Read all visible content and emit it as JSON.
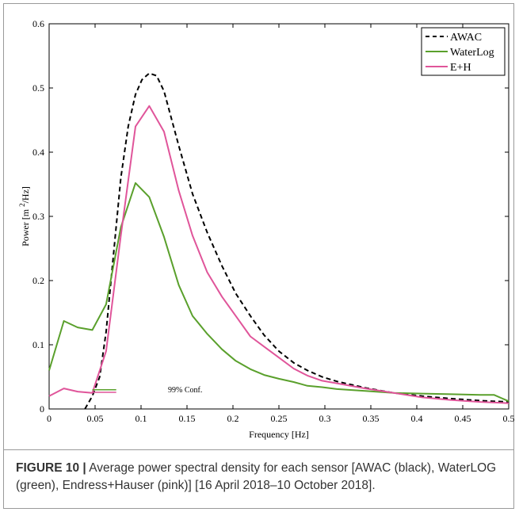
{
  "chart_data": {
    "type": "line",
    "xlabel": "Frequency [Hz]",
    "ylabel": "Power [m²/Hz]",
    "ylabel_parts": {
      "pre": "Power [m ",
      "sup": "2",
      "post": "/Hz]"
    },
    "xlim": [
      0,
      0.5
    ],
    "ylim": [
      0,
      0.6
    ],
    "xticks": [
      "0",
      "0.05",
      "0.1",
      "0.15",
      "0.2",
      "0.25",
      "0.3",
      "0.35",
      "0.4",
      "0.45",
      "0.5"
    ],
    "yticks": [
      "0",
      "0.1",
      "0.2",
      "0.3",
      "0.4",
      "0.5",
      "0.6"
    ],
    "grid": false,
    "legend_position": "top-right",
    "series": [
      {
        "name": "AWAC",
        "color": "#000000",
        "dash": "dashed",
        "x": [
          0.039,
          0.047,
          0.055,
          0.062,
          0.07,
          0.078,
          0.086,
          0.094,
          0.101,
          0.109,
          0.117,
          0.125,
          0.141,
          0.156,
          0.172,
          0.188,
          0.203,
          0.219,
          0.234,
          0.25,
          0.266,
          0.281,
          0.297,
          0.313,
          0.344,
          0.375,
          0.406,
          0.438,
          0.469,
          0.5
        ],
        "y": [
          0.0,
          0.02,
          0.05,
          0.12,
          0.24,
          0.36,
          0.44,
          0.49,
          0.513,
          0.523,
          0.519,
          0.495,
          0.41,
          0.335,
          0.275,
          0.223,
          0.18,
          0.145,
          0.115,
          0.09,
          0.072,
          0.06,
          0.05,
          0.043,
          0.033,
          0.025,
          0.02,
          0.016,
          0.013,
          0.011
        ]
      },
      {
        "name": "WaterLog",
        "color": "#5aa02c",
        "dash": "solid",
        "x": [
          0.0,
          0.016,
          0.031,
          0.047,
          0.062,
          0.078,
          0.094,
          0.109,
          0.125,
          0.141,
          0.156,
          0.172,
          0.188,
          0.203,
          0.219,
          0.234,
          0.25,
          0.266,
          0.281,
          0.297,
          0.313,
          0.344,
          0.375,
          0.406,
          0.438,
          0.469,
          0.484,
          0.5
        ],
        "y": [
          0.06,
          0.137,
          0.127,
          0.123,
          0.163,
          0.283,
          0.352,
          0.33,
          0.268,
          0.193,
          0.145,
          0.117,
          0.093,
          0.075,
          0.062,
          0.053,
          0.047,
          0.042,
          0.036,
          0.034,
          0.031,
          0.028,
          0.025,
          0.024,
          0.023,
          0.022,
          0.022,
          0.012
        ]
      },
      {
        "name": "E+H",
        "color": "#e0559a",
        "dash": "solid",
        "x": [
          0.0,
          0.016,
          0.031,
          0.047,
          0.062,
          0.078,
          0.094,
          0.109,
          0.125,
          0.141,
          0.156,
          0.172,
          0.188,
          0.203,
          0.219,
          0.234,
          0.25,
          0.266,
          0.281,
          0.297,
          0.313,
          0.344,
          0.375,
          0.406,
          0.438,
          0.469,
          0.5
        ],
        "y": [
          0.02,
          0.032,
          0.027,
          0.025,
          0.09,
          0.27,
          0.44,
          0.472,
          0.432,
          0.34,
          0.27,
          0.213,
          0.175,
          0.145,
          0.113,
          0.097,
          0.08,
          0.063,
          0.052,
          0.044,
          0.04,
          0.032,
          0.025,
          0.018,
          0.014,
          0.011,
          0.009
        ]
      }
    ],
    "annotation": {
      "label": "99% Conf.",
      "x_range": [
        0.047,
        0.073
      ],
      "y": 0.03,
      "colors": [
        "#5aa02c",
        "#e0559a"
      ],
      "offset_y": 0.004
    }
  },
  "caption": {
    "label": "FIGURE 10 |",
    "text": " Average power spectral density for each sensor [AWAC (black), WaterLOG (green), Endress+Hauser (pink)] [16 April 2018–10 October 2018]."
  }
}
